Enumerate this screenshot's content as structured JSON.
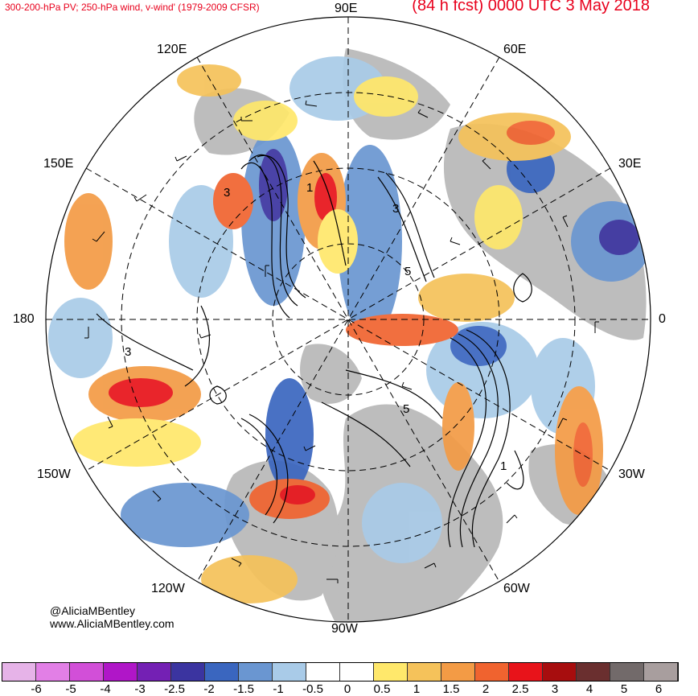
{
  "header": {
    "left_title": "300-200-hPa PV; 250-hPa wind, v-wind' (1979-2009 CFSR)",
    "right_title": "(84 h fcst) 0000 UTC 3 May 2018"
  },
  "credits": {
    "handle": "@AliciaMBentley",
    "website": "www.AliciaMBentley.com"
  },
  "map": {
    "projection": "north-polar-stereographic",
    "longitude_labels": {
      "top": "90E",
      "upper_right": "60E",
      "right_upper": "30E",
      "right": "0",
      "right_lower": "30W",
      "lower_right": "60W",
      "bottom": "90W",
      "lower_left": "120W",
      "left_lower": "150W",
      "left": "180",
      "left_upper": "150E",
      "upper_left": "120E"
    },
    "contour_labels": [
      "3",
      "1",
      "3",
      "5",
      "3",
      "5",
      "1"
    ],
    "land_color": "#bdbdbd",
    "contour_color": "#000000"
  },
  "colorbar": {
    "colors": [
      "#e6b3e8",
      "#e27fe6",
      "#d24fd8",
      "#b016c8",
      "#7420b4",
      "#3b34a0",
      "#3a66bf",
      "#6a96d1",
      "#a9cbe8",
      "#ffffff",
      "#ffffff",
      "#ffe86b",
      "#f5c25a",
      "#f39b45",
      "#f0632f",
      "#e8131a",
      "#a70d0e",
      "#6a2f2f",
      "#726a6a",
      "#a89e9e"
    ],
    "ticks": [
      "-6",
      "-5",
      "-4",
      "-3",
      "-2.5",
      "-2",
      "-1.5",
      "-1",
      "-0.5",
      "0",
      "0.5",
      "1",
      "1.5",
      "2",
      "2.5",
      "3",
      "4",
      "5",
      "6"
    ]
  }
}
